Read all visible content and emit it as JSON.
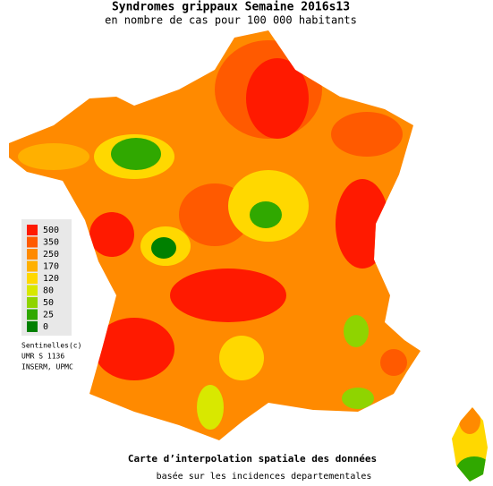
{
  "header": {
    "title": "Syndromes grippaux Semaine 2016s13",
    "subtitle": "en nombre de cas pour 100 000 habitants"
  },
  "legend": [
    {
      "label": 500,
      "color": "#ff1a00"
    },
    {
      "label": 350,
      "color": "#ff5a00"
    },
    {
      "label": 250,
      "color": "#ff8a00"
    },
    {
      "label": 170,
      "color": "#ffb000"
    },
    {
      "label": 120,
      "color": "#ffd800"
    },
    {
      "label": 80,
      "color": "#d8e800"
    },
    {
      "label": 50,
      "color": "#8fd400"
    },
    {
      "label": 25,
      "color": "#30a800"
    },
    {
      "label": 0,
      "color": "#008000"
    }
  ],
  "credits": [
    "Sentinelles(c)",
    "UMR S 1136",
    "INSERM, UPMC"
  ],
  "footer": {
    "line1": "Carte d’interpolation spatiale des données",
    "line2": "basée sur les incidences departementales"
  }
}
